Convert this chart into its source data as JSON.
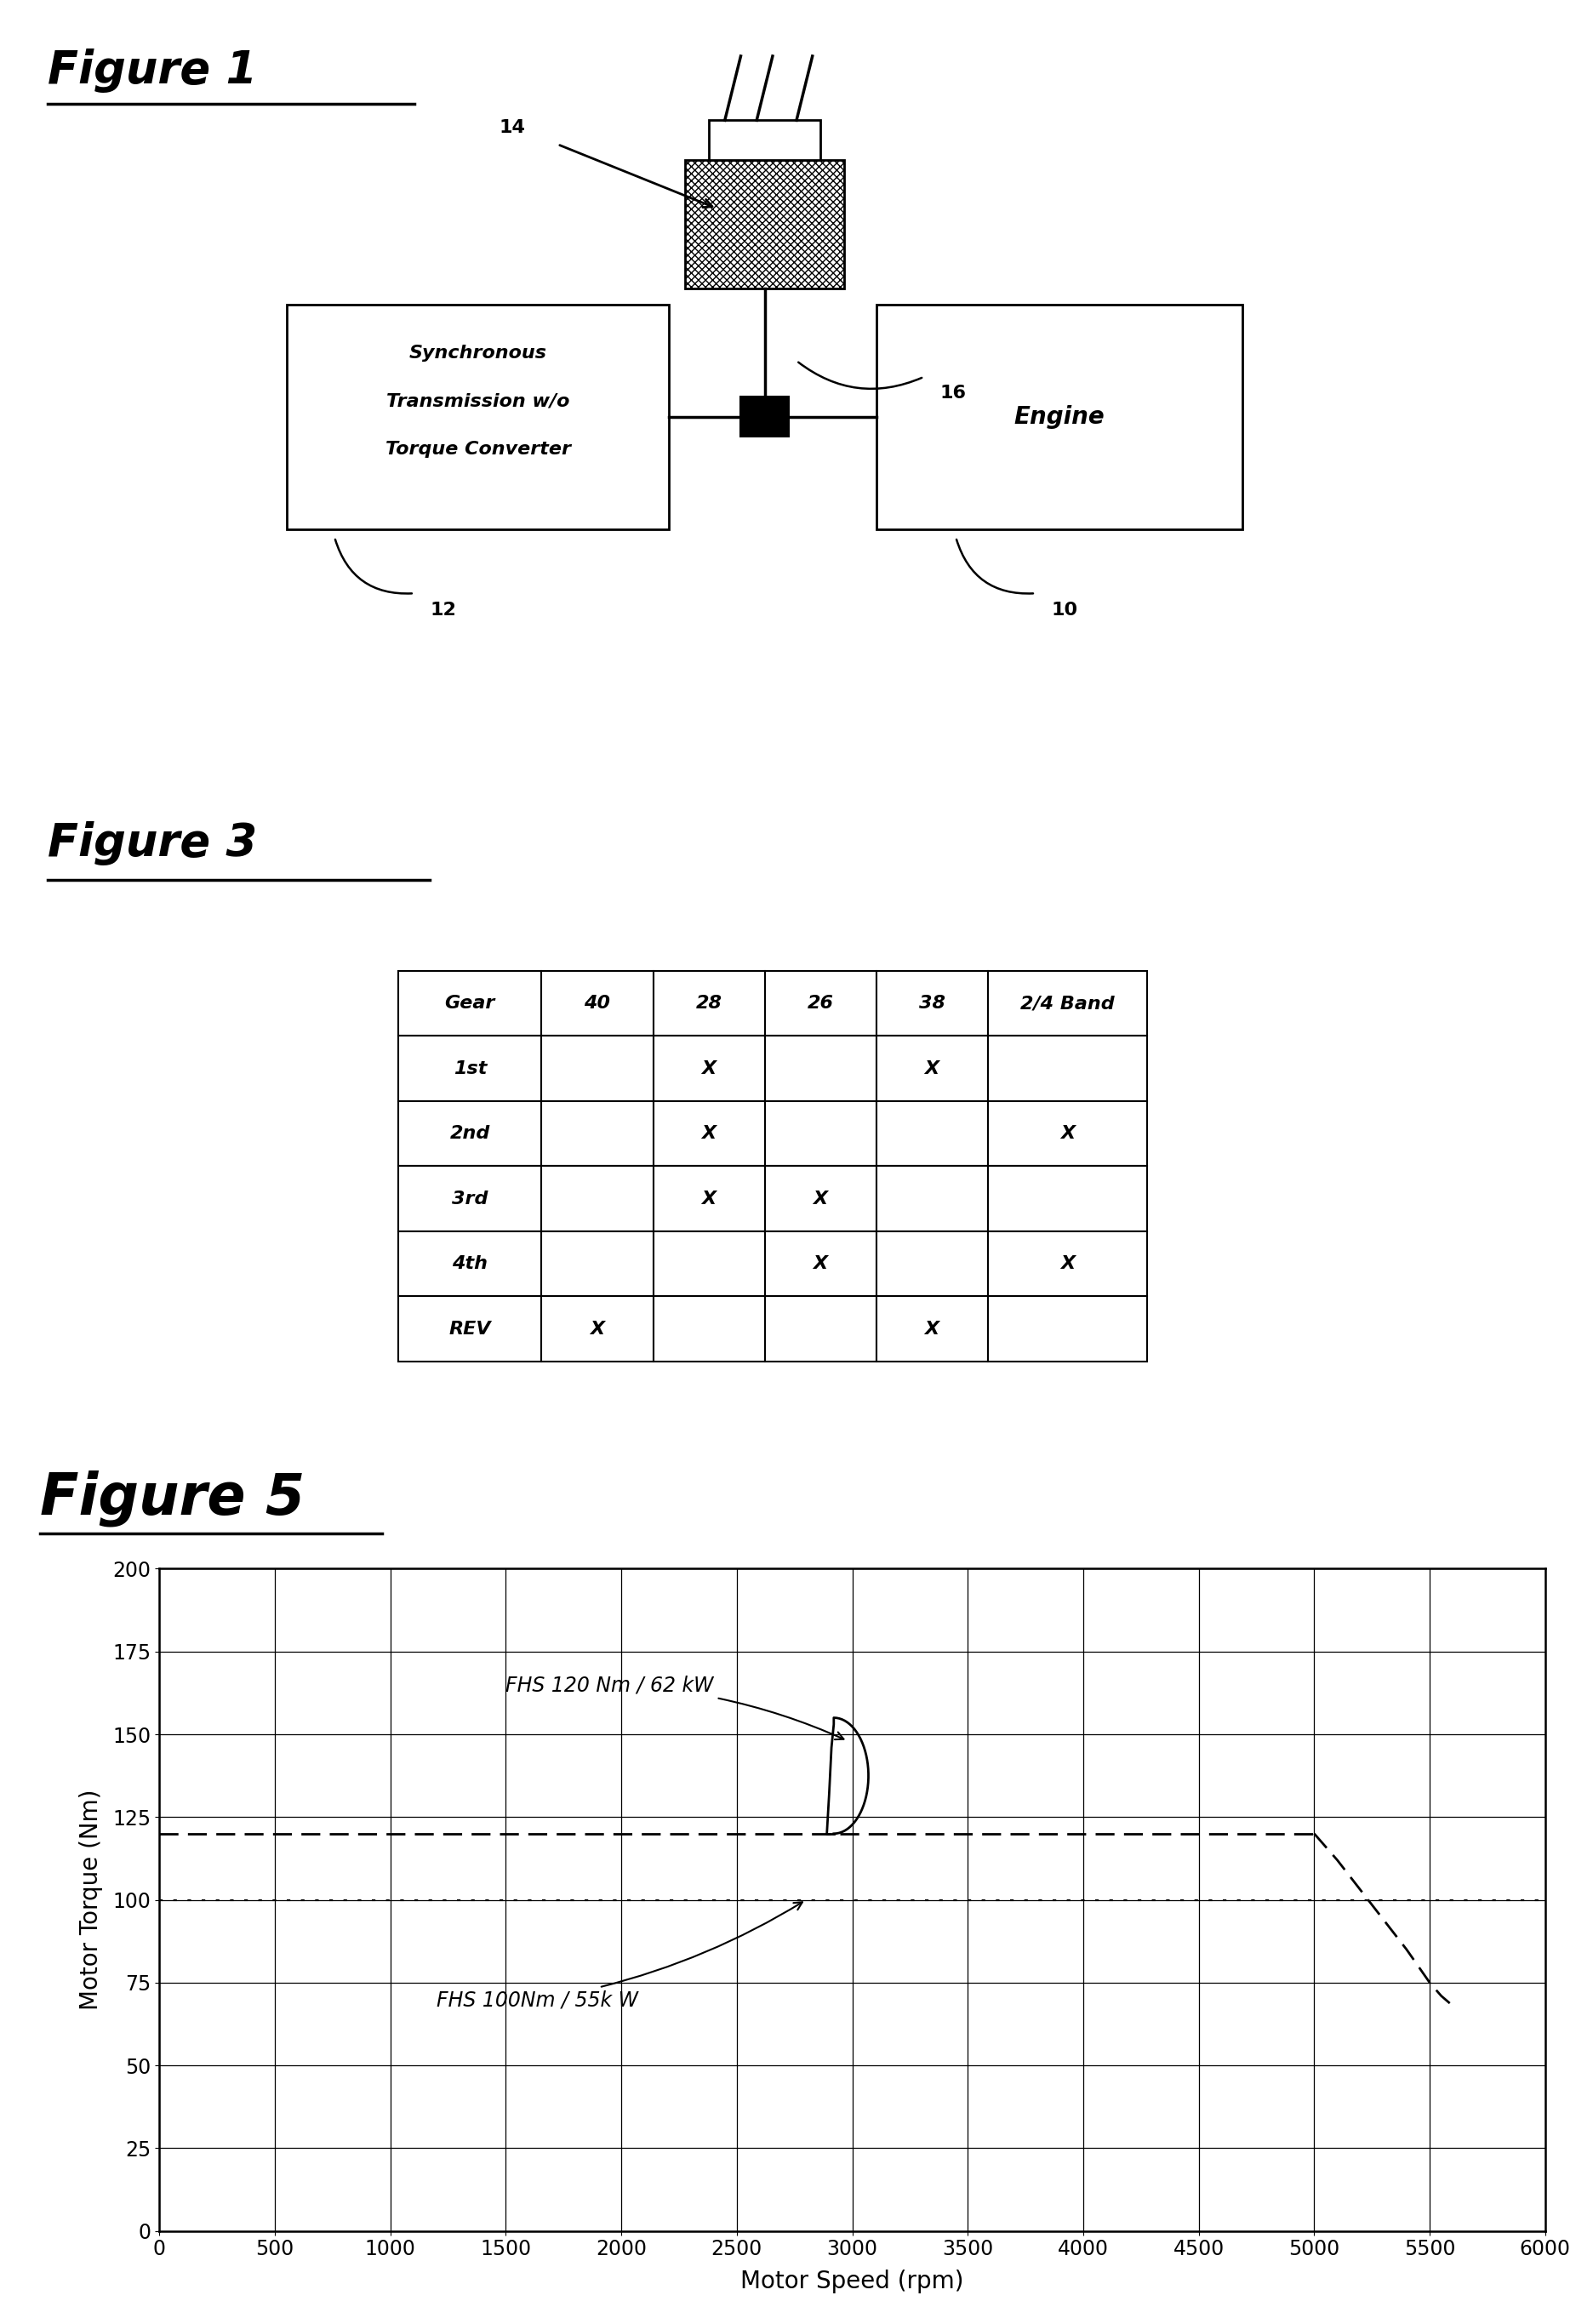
{
  "fig1_title": "Figure 1",
  "fig3_title": "Figure 3",
  "fig5_title": "Figure 5",
  "table_headers": [
    "Gear",
    "40",
    "28",
    "26",
    "38",
    "2/4 Band"
  ],
  "table_rows": [
    [
      "1st",
      "",
      "X",
      "",
      "X",
      ""
    ],
    [
      "2nd",
      "",
      "X",
      "",
      "",
      "X"
    ],
    [
      "3rd",
      "",
      "X",
      "X",
      "",
      ""
    ],
    [
      "4th",
      "",
      "",
      "X",
      "",
      "X"
    ],
    [
      "REV",
      "X",
      "",
      "",
      "X",
      ""
    ]
  ],
  "motor_speed_ticks": [
    0,
    500,
    1000,
    1500,
    2000,
    2500,
    3000,
    3500,
    4000,
    4500,
    5000,
    5500,
    6000
  ],
  "motor_torque_ticks": [
    0,
    25,
    50,
    75,
    100,
    125,
    150,
    175,
    200
  ],
  "fhs_high_torque": 120,
  "fhs_low_torque": 100,
  "fhs_high_label": "FHS 120 Nm / 62 kW",
  "fhs_low_label": "FHS 100Nm / 55k W",
  "background_color": "#ffffff"
}
